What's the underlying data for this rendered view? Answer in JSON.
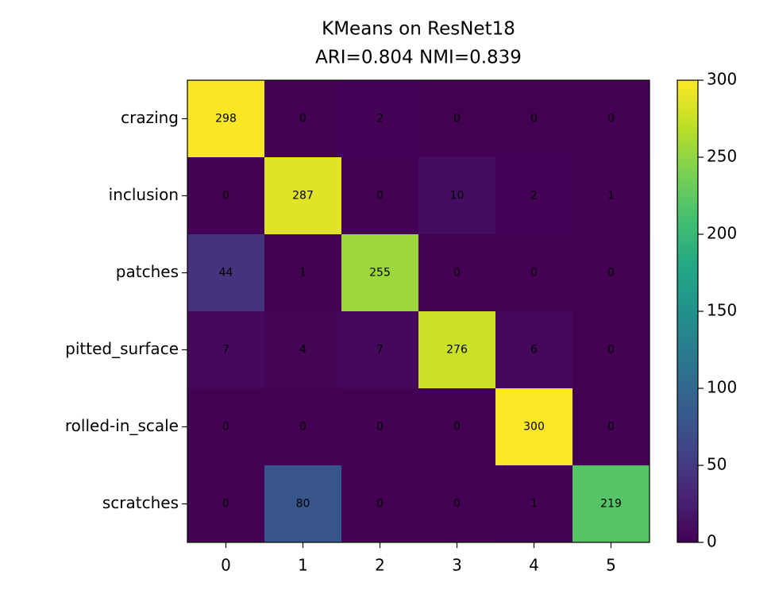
{
  "chart_data": {
    "type": "heatmap",
    "title": "KMeans on ResNet18",
    "subtitle": "ARI=0.804  NMI=0.839",
    "rows": [
      "crazing",
      "inclusion",
      "patches",
      "pitted_surface",
      "rolled-in_scale",
      "scratches"
    ],
    "columns": [
      "0",
      "1",
      "2",
      "3",
      "4",
      "5"
    ],
    "values": [
      [
        298,
        0,
        2,
        0,
        0,
        0
      ],
      [
        0,
        287,
        0,
        10,
        2,
        1
      ],
      [
        44,
        1,
        255,
        0,
        0,
        0
      ],
      [
        7,
        4,
        7,
        276,
        6,
        0
      ],
      [
        0,
        0,
        0,
        0,
        300,
        0
      ],
      [
        0,
        80,
        0,
        0,
        1,
        219
      ]
    ],
    "colormap": "viridis",
    "clim": [
      0,
      300
    ],
    "cticks": [
      0,
      50,
      100,
      150,
      200,
      250,
      300
    ]
  }
}
